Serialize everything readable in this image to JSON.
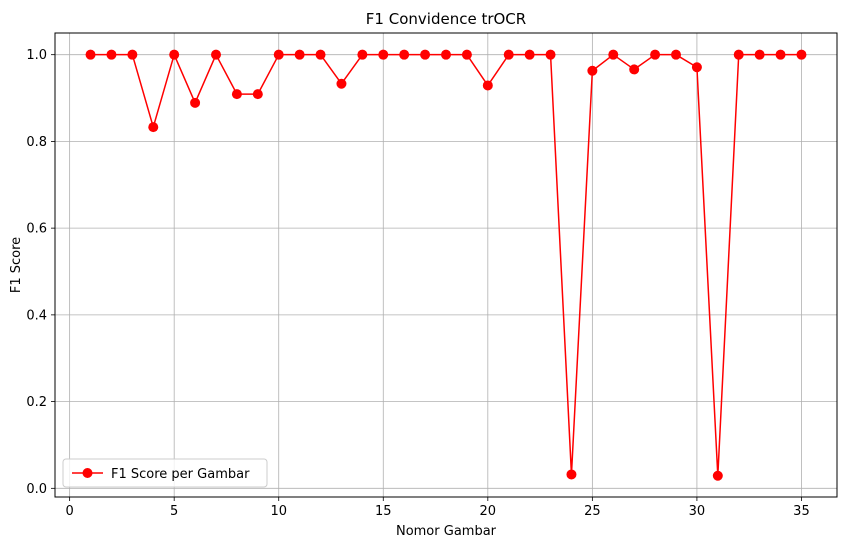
{
  "chart_data": {
    "type": "line",
    "title": "F1 Convidence trOCR",
    "xlabel": "Nomor Gambar",
    "ylabel": "F1 Score",
    "xlim": [
      -0.7,
      36.7
    ],
    "ylim": [
      -0.02,
      1.05
    ],
    "xticks": [
      0,
      5,
      10,
      15,
      20,
      25,
      30,
      35
    ],
    "xtick_labels": [
      "0",
      "5",
      "10",
      "15",
      "20",
      "25",
      "30",
      "35"
    ],
    "yticks": [
      0.0,
      0.2,
      0.4,
      0.6,
      0.8,
      1.0
    ],
    "ytick_labels": [
      "0.0",
      "0.2",
      "0.4",
      "0.6",
      "0.8",
      "1.0"
    ],
    "grid": true,
    "legend_position": "lower-left",
    "x": [
      1,
      2,
      3,
      4,
      5,
      6,
      7,
      8,
      9,
      10,
      11,
      12,
      13,
      14,
      15,
      16,
      17,
      18,
      19,
      20,
      21,
      22,
      23,
      24,
      25,
      26,
      27,
      28,
      29,
      30,
      31,
      32,
      33,
      34,
      35
    ],
    "series": [
      {
        "name": "F1 Score per Gambar",
        "color": "#ff0000",
        "marker": "circle",
        "values": [
          1.0,
          1.0,
          1.0,
          0.833,
          1.0,
          0.889,
          1.0,
          0.909,
          0.909,
          1.0,
          1.0,
          1.0,
          0.933,
          1.0,
          1.0,
          1.0,
          1.0,
          1.0,
          1.0,
          0.929,
          1.0,
          1.0,
          1.0,
          0.032,
          0.963,
          1.0,
          0.966,
          1.0,
          1.0,
          0.971,
          0.029,
          1.0,
          1.0,
          1.0,
          1.0
        ]
      }
    ]
  }
}
